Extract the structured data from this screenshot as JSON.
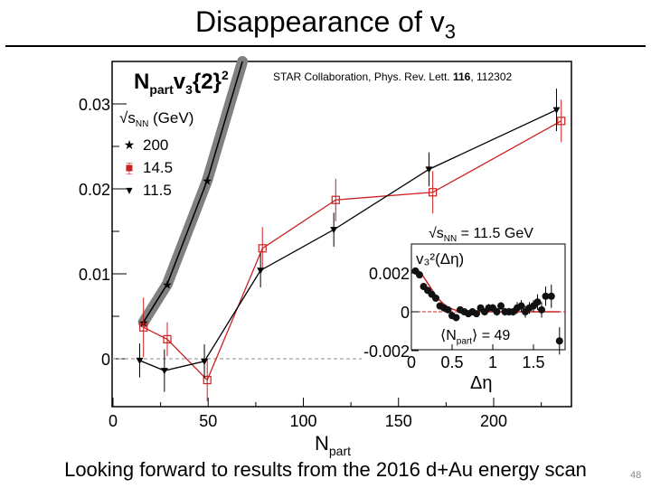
{
  "slide": {
    "title": "Disappearance of v",
    "title_sub": "3",
    "footer": "Looking forward to results from the 2016 d+Au energy scan",
    "page_number": "48"
  },
  "chart_data": [
    {
      "type": "line",
      "title": "N_part v_3{2}^2",
      "citation_prefix": "STAR Collaboration, Phys. Rev. Lett. ",
      "citation_volume": "116",
      "citation_suffix": ", 112302",
      "xlabel": "N_part",
      "xlim": [
        0,
        240
      ],
      "ylim": [
        -0.0025,
        0.035
      ],
      "x_ticks": [
        "0",
        "50",
        "100",
        "150",
        "200"
      ],
      "x_tick_values": [
        0,
        50,
        100,
        150,
        200
      ],
      "y_ticks": [
        "0",
        "0.01",
        "0.02",
        "0.03"
      ],
      "y_tick_values": [
        0,
        0.01,
        0.02,
        0.03
      ],
      "legend_title": "√s_NN (GeV)",
      "legend_placement": "top-left",
      "series": [
        {
          "name": "200",
          "color": "#000000",
          "band_color": "#808080",
          "marker": "star",
          "x": [
            16,
            28.5,
            49.5,
            68
          ],
          "y": [
            0.0043,
            0.0088,
            0.021,
            0.035
          ],
          "err": [
            0,
            0,
            0,
            0
          ]
        },
        {
          "name": "14.5",
          "color": "#cc2020",
          "marker": "open-square",
          "x": [
            16,
            28.5,
            49.5,
            78.5,
            117,
            168,
            235.5
          ],
          "y": [
            0.0037,
            0.0023,
            -0.0025,
            0.013,
            0.0187,
            0.0196,
            0.028
          ],
          "err": [
            0.0035,
            0.002,
            0.0025,
            0.0025,
            0.0025,
            0.0025,
            0.0025
          ]
        },
        {
          "name": "11.5",
          "color": "#000000",
          "marker": "down-triangle",
          "x": [
            14,
            27,
            48,
            77.5,
            116,
            166,
            233
          ],
          "y": [
            -0.0002,
            -0.0014,
            -0.0003,
            0.0104,
            0.0152,
            0.0223,
            0.0293
          ],
          "err": [
            0.002,
            0.0025,
            0.002,
            0.002,
            0.002,
            0.002,
            0.0025
          ]
        }
      ],
      "reference_line": {
        "y": 0,
        "style": "dashed"
      }
    },
    {
      "type": "scatter",
      "label_energy": "√s_NN = 11.5 GeV",
      "ylabel": "v₃²(Δη)",
      "xlabel": "Δη",
      "annotation": "⟨N_part⟩ = 49",
      "xlim": [
        0,
        1.9
      ],
      "ylim": [
        -0.002,
        0.0032
      ],
      "x_ticks": [
        "0",
        "0.5",
        "1",
        "1.5"
      ],
      "x_tick_values": [
        0,
        0.5,
        1,
        1.5
      ],
      "y_ticks": [
        "0.002",
        "0",
        "-0.002"
      ],
      "y_tick_values": [
        0.002,
        0,
        -0.002
      ],
      "points": {
        "x": [
          0.05,
          0.1,
          0.15,
          0.2,
          0.25,
          0.3,
          0.35,
          0.4,
          0.45,
          0.5,
          0.55,
          0.6,
          0.65,
          0.7,
          0.75,
          0.8,
          0.85,
          0.9,
          0.95,
          1.0,
          1.05,
          1.1,
          1.15,
          1.2,
          1.25,
          1.3,
          1.35,
          1.4,
          1.45,
          1.5,
          1.55,
          1.6,
          1.65,
          1.72,
          1.82
        ],
        "y": [
          0.0021,
          0.0019,
          0.0013,
          0.0011,
          0.0009,
          0.0007,
          0.0003,
          0.0002,
          0.0001,
          -0.0002,
          -0.0003,
          0.0001,
          0.0,
          -0.0001,
          0.0,
          -0.0001,
          0.0002,
          0.0,
          0.0002,
          0.0002,
          0.0,
          0.0003,
          0.0,
          0.0,
          0.0,
          0.0002,
          0.0003,
          0.0,
          0.0002,
          0.0003,
          0.0005,
          0.0001,
          0.0008,
          0.0008,
          -0.0015
        ],
        "err": [
          0.0001,
          0.0001,
          0.0001,
          0.0001,
          0.0001,
          0.0001,
          0.0001,
          0.0001,
          0.0001,
          0.0001,
          0.0001,
          0.0001,
          0.0001,
          0.0001,
          0.0001,
          0.0001,
          0.0001,
          0.0001,
          0.0002,
          0.0002,
          0.0002,
          0.0002,
          0.0002,
          0.0002,
          0.0002,
          0.0003,
          0.0003,
          0.0003,
          0.0003,
          0.0003,
          0.0004,
          0.0004,
          0.0005,
          0.0006,
          0.0007
        ]
      },
      "fit_color": "#cc2020",
      "reference_line": {
        "y": 0,
        "style": "dashed",
        "color": "#cc2020"
      }
    }
  ]
}
